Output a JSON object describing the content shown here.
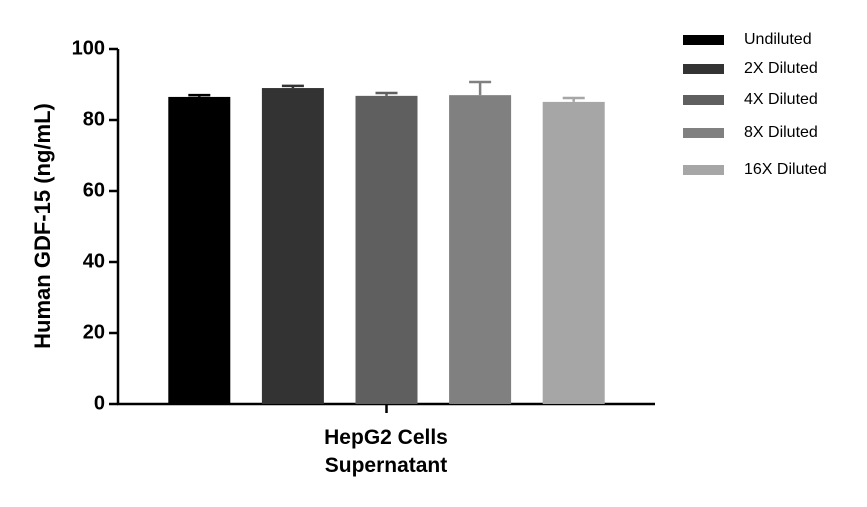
{
  "chart_data": {
    "type": "bar",
    "y_label": "Human GDF-15 (ng/mL)",
    "categories": [
      "HepG2 Cells Supernatant"
    ],
    "series": [
      {
        "name": "Undiluted",
        "color": "#000000",
        "values": [
          86.5
        ],
        "errors": [
          0.5
        ]
      },
      {
        "name": "2X Diluted",
        "color": "#333333",
        "values": [
          89.0
        ],
        "errors": [
          0.6
        ]
      },
      {
        "name": "4X Diluted",
        "color": "#5f5f5f",
        "values": [
          86.8
        ],
        "errors": [
          0.8
        ]
      },
      {
        "name": "8X Diluted",
        "color": "#808080",
        "values": [
          87.0
        ],
        "errors": [
          3.7
        ]
      },
      {
        "name": "16X Diluted",
        "color": "#a6a6a6",
        "values": [
          85.1
        ],
        "errors": [
          1.1
        ]
      }
    ],
    "ylim": [
      0,
      100
    ],
    "yticks": [
      0,
      20,
      40,
      60,
      80,
      100
    ],
    "grid": false
  }
}
